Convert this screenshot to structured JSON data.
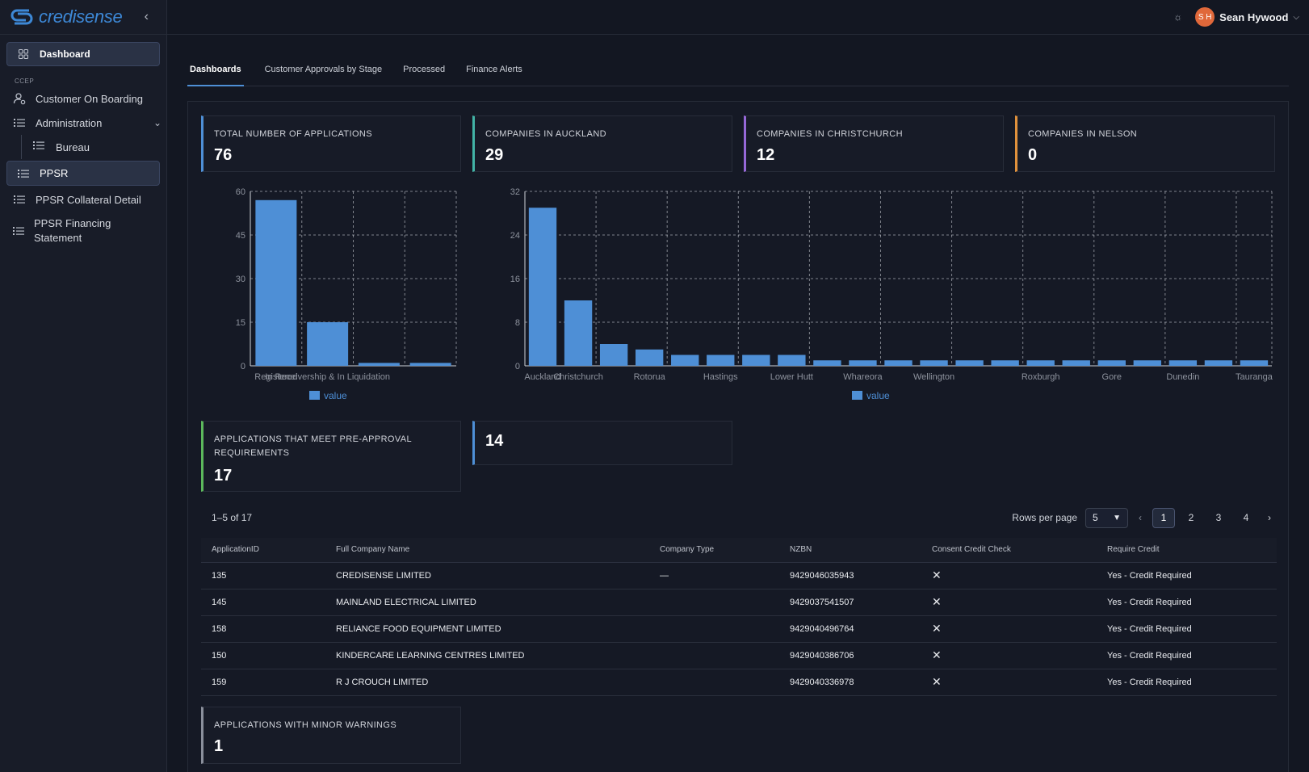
{
  "app": {
    "logo_text": "credisense",
    "collapse_icon": "chevron-left-icon"
  },
  "user": {
    "initials": "S H",
    "name": "Sean Hywood",
    "avatar_color": "#e0683a"
  },
  "sidebar": {
    "dashboard_label": "Dashboard",
    "section_label": "CCEP",
    "items": [
      {
        "label": "Customer On Boarding",
        "icon": "user-gear-icon"
      },
      {
        "label": "Administration",
        "icon": "list-icon"
      },
      {
        "label": "Bureau",
        "icon": "list-icon"
      },
      {
        "label": "PPSR",
        "icon": "list-icon"
      },
      {
        "label": "PPSR Collateral Detail",
        "icon": "list-icon"
      },
      {
        "label": "PPSR Financing Statement",
        "icon": "list-icon"
      }
    ]
  },
  "tabs": [
    "Dashboards",
    "Customer Approvals by Stage",
    "Processed",
    "Finance Alerts"
  ],
  "kpis": {
    "total": {
      "label": "TOTAL NUMBER OF APPLICATIONS",
      "value": "76",
      "color": "#4e8fd6"
    },
    "auckland": {
      "label": "COMPANIES IN AUCKLAND",
      "value": "29",
      "color": "#42b3a6"
    },
    "christchurch": {
      "label": "COMPANIES IN CHRISTCHURCH",
      "value": "12",
      "color": "#9668d8"
    },
    "nelson": {
      "label": "COMPANIES IN NELSON",
      "value": "0",
      "color": "#e0913c"
    },
    "preapproval": {
      "label": "APPLICATIONS THAT MEET PRE-APPROVAL REQUIREMENTS",
      "value": "17",
      "color": "#5cb85c"
    },
    "unlabeled": {
      "label": "",
      "value": "14",
      "color": "#4e8fd6"
    },
    "warnings": {
      "label": "APPLICATIONS WITH MINOR WARNINGS",
      "value": "1",
      "color": "#8a8f9b"
    }
  },
  "chart_data": [
    {
      "type": "bar",
      "categories": [
        "Registered",
        "In Receivership & In Liquidation",
        "",
        ""
      ],
      "values": [
        57,
        15,
        1,
        1
      ],
      "ylim": [
        0,
        60
      ],
      "yticks": [
        0,
        15,
        30,
        45,
        60
      ],
      "legend": "value",
      "legend_position": "bottom",
      "grid": true,
      "color": "#4e8fd6"
    },
    {
      "type": "bar",
      "categories": [
        "Auckland",
        "Christchurch",
        "",
        "Rotorua",
        "",
        "Hastings",
        "",
        "Lower Hutt",
        "",
        "Whareora",
        "",
        "Wellington",
        "",
        "",
        "Roxburgh",
        "",
        "Gore",
        "",
        "Dunedin",
        "",
        "Tauranga"
      ],
      "values": [
        29,
        12,
        4,
        3,
        2,
        2,
        2,
        2,
        1,
        1,
        1,
        1,
        1,
        1,
        1,
        1,
        1,
        1,
        1,
        1,
        1
      ],
      "ylim": [
        0,
        32
      ],
      "yticks": [
        0,
        8,
        16,
        24,
        32
      ],
      "legend": "value",
      "legend_position": "bottom",
      "grid": true,
      "color": "#4e8fd6"
    }
  ],
  "table": {
    "count_text": "1–5 of 17",
    "rows_per_page_label": "Rows per page",
    "rows_per_page": "5",
    "pages": [
      "1",
      "2",
      "3",
      "4"
    ],
    "current_page": "1",
    "columns": [
      "ApplicationID",
      "Full Company Name",
      "Company Type",
      "NZBN",
      "Consent Credit Check",
      "Require Credit"
    ],
    "rows": [
      {
        "id": "135",
        "name": "CREDISENSE LIMITED",
        "type": "—",
        "nzbn": "9429046035943",
        "consent": "✕",
        "credit": "Yes - Credit Required"
      },
      {
        "id": "145",
        "name": "MAINLAND ELECTRICAL LIMITED",
        "type": "",
        "nzbn": "9429037541507",
        "consent": "✕",
        "credit": "Yes - Credit Required"
      },
      {
        "id": "158",
        "name": "RELIANCE FOOD EQUIPMENT LIMITED",
        "type": "",
        "nzbn": "9429040496764",
        "consent": "✕",
        "credit": "Yes - Credit Required"
      },
      {
        "id": "150",
        "name": "KINDERCARE LEARNING CENTRES LIMITED",
        "type": "",
        "nzbn": "9429040386706",
        "consent": "✕",
        "credit": "Yes - Credit Required"
      },
      {
        "id": "159",
        "name": "R J CROUCH LIMITED",
        "type": "",
        "nzbn": "9429040336978",
        "consent": "✕",
        "credit": "Yes - Credit Required"
      }
    ]
  }
}
